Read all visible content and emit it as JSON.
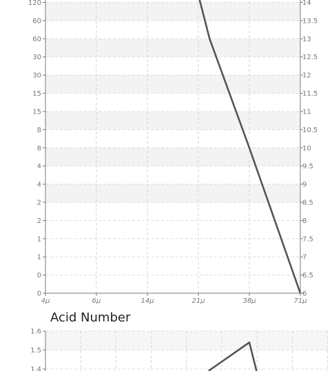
{
  "chart_data": [
    {
      "type": "line",
      "title": "",
      "x": {
        "tick_labels": [
          "4μ",
          "6μ",
          "14μ",
          "21μ",
          "38μ",
          "71μ"
        ]
      },
      "y_left": {
        "tick_labels": [
          "120",
          "60",
          "60",
          "30",
          "30",
          "15",
          "15",
          "8",
          "8",
          "4",
          "4",
          "2",
          "2",
          "1",
          "1",
          "0",
          "0"
        ]
      },
      "y_right": {
        "tick_labels": [
          "14",
          "13.5",
          "13",
          "12.5",
          "12",
          "11.5",
          "11",
          "10.5",
          "10",
          "9.5",
          "9",
          "8.5",
          "8",
          "7.5",
          "7",
          "6.5",
          "6"
        ],
        "min": 6,
        "max": 14
      },
      "series": [
        {
          "axis": "right",
          "x_tick_index": [
            3.0,
            3.22,
            4.0,
            5.0
          ],
          "values": [
            14.2,
            13.0,
            10.0,
            6.0
          ]
        }
      ],
      "grid": true,
      "line_color": "#555555"
    },
    {
      "type": "line",
      "title": "Acid Number",
      "y_left": {
        "tick_labels": [
          "1.6",
          "1.5",
          "1.4"
        ],
        "min": 1.4,
        "max": 1.6
      },
      "series": [
        {
          "axis": "left",
          "x_tick_index": [
            3.2,
            4.0,
            4.15
          ],
          "values": [
            1.39,
            1.54,
            1.38
          ]
        }
      ],
      "grid": true,
      "line_color": "#555555"
    }
  ]
}
